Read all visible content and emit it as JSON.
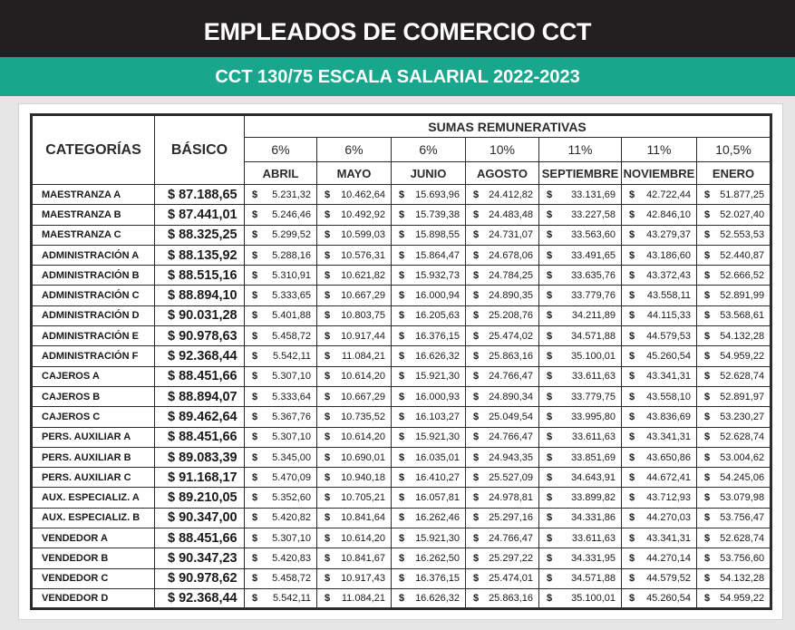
{
  "header": {
    "title": "EMPLEADOS DE COMERCIO CCT",
    "subtitle": "CCT 130/75 ESCALA SALARIAL 2022-2023"
  },
  "table": {
    "col_categories": "CATEGORÍAS",
    "col_basic": "BÁSICO",
    "group_title": "SUMAS REMUNERATIVAS",
    "percents": [
      "6%",
      "6%",
      "6%",
      "10%",
      "11%",
      "11%",
      "10,5%"
    ],
    "months": [
      "ABRIL",
      "MAYO",
      "JUNIO",
      "AGOSTO",
      "SEPTIEMBRE",
      "NOVIEMBRE",
      "ENERO"
    ],
    "currency": "$",
    "rows": [
      {
        "cat": "MAESTRANZA A",
        "basic": "$ 87.188,65",
        "v": [
          "5.231,32",
          "10.462,64",
          "15.693,96",
          "24.412,82",
          "33.131,69",
          "42.722,44",
          "51.877,25"
        ]
      },
      {
        "cat": "MAESTRANZA B",
        "basic": "$ 87.441,01",
        "v": [
          "5.246,46",
          "10.492,92",
          "15.739,38",
          "24.483,48",
          "33.227,58",
          "42.846,10",
          "52.027,40"
        ]
      },
      {
        "cat": "MAESTRANZA C",
        "basic": "$ 88.325,25",
        "v": [
          "5.299,52",
          "10.599,03",
          "15.898,55",
          "24.731,07",
          "33.563,60",
          "43.279,37",
          "52.553,53"
        ]
      },
      {
        "cat": "ADMINISTRACIÓN A",
        "basic": "$ 88.135,92",
        "v": [
          "5.288,16",
          "10.576,31",
          "15.864,47",
          "24.678,06",
          "33.491,65",
          "43.186,60",
          "52.440,87"
        ]
      },
      {
        "cat": "ADMINISTRACIÓN B",
        "basic": "$ 88.515,16",
        "v": [
          "5.310,91",
          "10.621,82",
          "15.932,73",
          "24.784,25",
          "33.635,76",
          "43.372,43",
          "52.666,52"
        ]
      },
      {
        "cat": "ADMINISTRACIÓN C",
        "basic": "$ 88.894,10",
        "v": [
          "5.333,65",
          "10.667,29",
          "16.000,94",
          "24.890,35",
          "33.779,76",
          "43.558,11",
          "52.891,99"
        ]
      },
      {
        "cat": "ADMINISTRACIÓN D",
        "basic": "$ 90.031,28",
        "v": [
          "5.401,88",
          "10.803,75",
          "16.205,63",
          "25.208,76",
          "34.211,89",
          "44.115,33",
          "53.568,61"
        ]
      },
      {
        "cat": "ADMINISTRACIÓN E",
        "basic": "$ 90.978,63",
        "v": [
          "5.458,72",
          "10.917,44",
          "16.376,15",
          "25.474,02",
          "34.571,88",
          "44.579,53",
          "54.132,28"
        ]
      },
      {
        "cat": "ADMINISTRACIÓN F",
        "basic": "$ 92.368,44",
        "v": [
          "5.542,11",
          "11.084,21",
          "16.626,32",
          "25.863,16",
          "35.100,01",
          "45.260,54",
          "54.959,22"
        ]
      },
      {
        "cat": "CAJEROS A",
        "basic": "$ 88.451,66",
        "v": [
          "5.307,10",
          "10.614,20",
          "15.921,30",
          "24.766,47",
          "33.611,63",
          "43.341,31",
          "52.628,74"
        ]
      },
      {
        "cat": "CAJEROS B",
        "basic": "$ 88.894,07",
        "v": [
          "5.333,64",
          "10.667,29",
          "16.000,93",
          "24.890,34",
          "33.779,75",
          "43.558,10",
          "52.891,97"
        ]
      },
      {
        "cat": "CAJEROS C",
        "basic": "$ 89.462,64",
        "v": [
          "5.367,76",
          "10.735,52",
          "16.103,27",
          "25.049,54",
          "33.995,80",
          "43.836,69",
          "53.230,27"
        ]
      },
      {
        "cat": "PERS. AUXILIAR A",
        "basic": "$ 88.451,66",
        "v": [
          "5.307,10",
          "10.614,20",
          "15.921,30",
          "24.766,47",
          "33.611,63",
          "43.341,31",
          "52.628,74"
        ]
      },
      {
        "cat": "PERS. AUXILIAR B",
        "basic": "$ 89.083,39",
        "v": [
          "5.345,00",
          "10.690,01",
          "16.035,01",
          "24.943,35",
          "33.851,69",
          "43.650,86",
          "53.004,62"
        ]
      },
      {
        "cat": "PERS. AUXILIAR C",
        "basic": "$ 91.168,17",
        "v": [
          "5.470,09",
          "10.940,18",
          "16.410,27",
          "25.527,09",
          "34.643,91",
          "44.672,41",
          "54.245,06"
        ]
      },
      {
        "cat": "AUX. ESPECIALIZ. A",
        "basic": "$ 89.210,05",
        "v": [
          "5.352,60",
          "10.705,21",
          "16.057,81",
          "24.978,81",
          "33.899,82",
          "43.712,93",
          "53.079,98"
        ]
      },
      {
        "cat": "AUX. ESPECIALIZ. B",
        "basic": "$ 90.347,00",
        "v": [
          "5.420,82",
          "10.841,64",
          "16.262,46",
          "25.297,16",
          "34.331,86",
          "44.270,03",
          "53.756,47"
        ]
      },
      {
        "cat": "VENDEDOR A",
        "basic": "$ 88.451,66",
        "v": [
          "5.307,10",
          "10.614,20",
          "15.921,30",
          "24.766,47",
          "33.611,63",
          "43.341,31",
          "52.628,74"
        ]
      },
      {
        "cat": "VENDEDOR B",
        "basic": "$ 90.347,23",
        "v": [
          "5.420,83",
          "10.841,67",
          "16.262,50",
          "25.297,22",
          "34.331,95",
          "44.270,14",
          "53.756,60"
        ]
      },
      {
        "cat": "VENDEDOR C",
        "basic": "$ 90.978,62",
        "v": [
          "5.458,72",
          "10.917,43",
          "16.376,15",
          "25.474,01",
          "34.571,88",
          "44.579,52",
          "54.132,28"
        ]
      },
      {
        "cat": "VENDEDOR D",
        "basic": "$ 92.368,44",
        "v": [
          "5.542,11",
          "11.084,21",
          "16.626,32",
          "25.863,16",
          "35.100,01",
          "45.260,54",
          "54.959,22"
        ]
      }
    ]
  }
}
